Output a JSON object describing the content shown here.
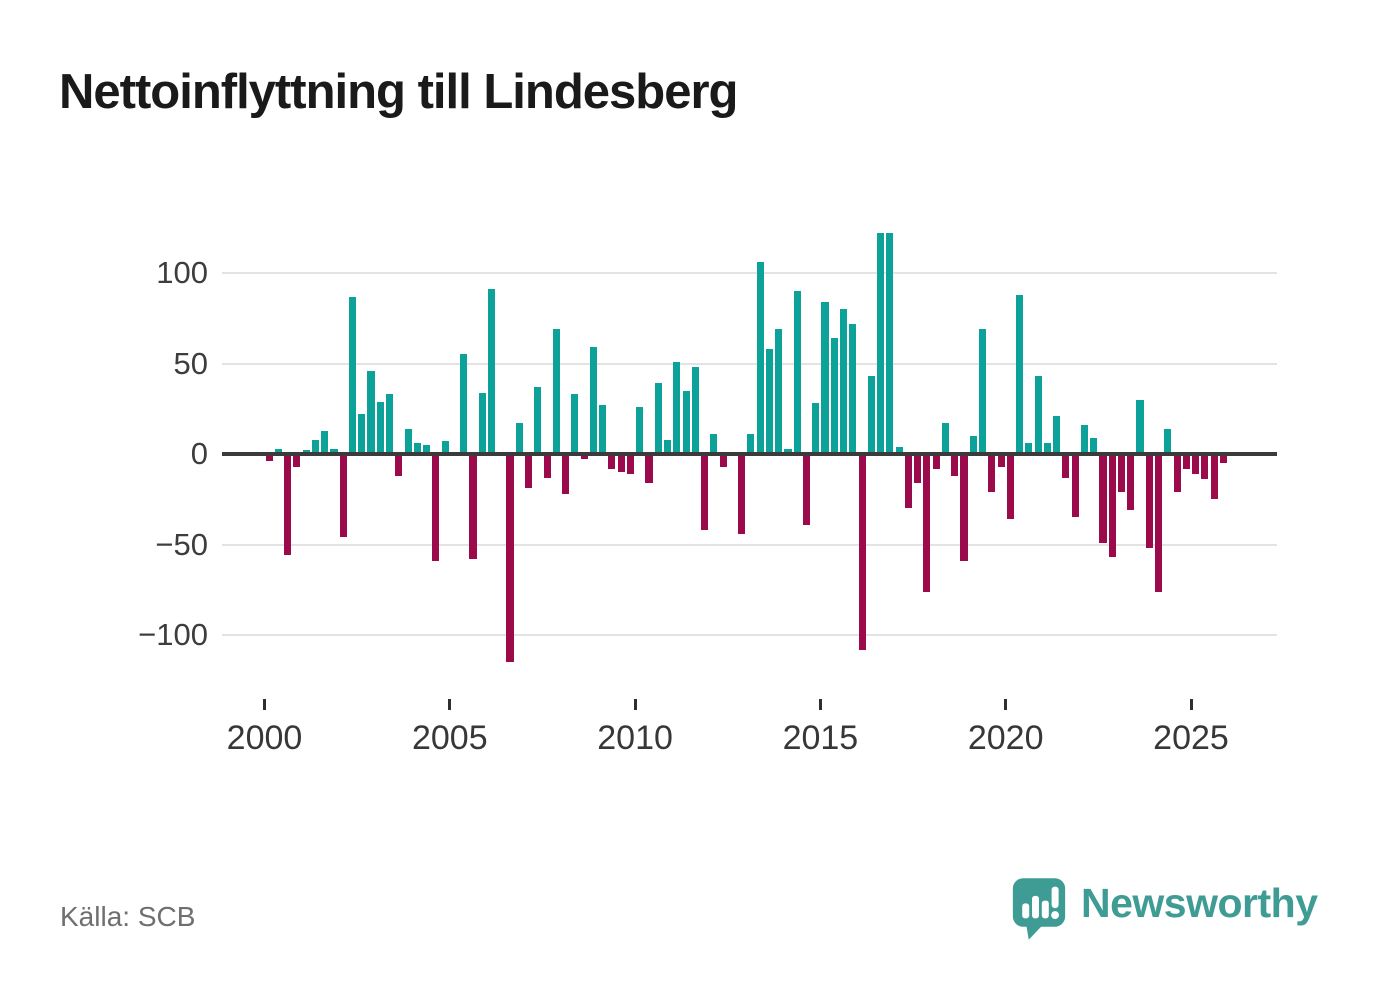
{
  "title": "Nettoinflyttning till Lindesberg",
  "source": "Källa: SCB",
  "branding": {
    "name": "Newsworthy"
  },
  "colors": {
    "positive": "#0da299",
    "negative": "#9b0a4b",
    "axis": "#3b3b3b",
    "grid": "#e3e3e3",
    "brand": "#3f9c95"
  },
  "chart_data": {
    "type": "bar",
    "title": "Nettoinflyttning till Lindesberg",
    "ylabel": "",
    "xlabel": "",
    "frequency": "quarterly",
    "start_period": "2000-Q1",
    "end_period": "2025-Q4",
    "xtick_labels": [
      "2000",
      "2005",
      "2010",
      "2015",
      "2020",
      "2025"
    ],
    "ytick_values": [
      100,
      50,
      0,
      -50,
      -100
    ],
    "ylim": [
      -125,
      130
    ],
    "grid": true,
    "legend": false,
    "positive_color": "#0da299",
    "negative_color": "#9b0a4b",
    "values": [
      -4,
      3,
      -56,
      -7,
      2,
      8,
      13,
      3,
      -46,
      87,
      22,
      46,
      29,
      33,
      -12,
      14,
      6,
      5,
      -59,
      7,
      0,
      55,
      -58,
      34,
      91,
      0,
      -115,
      17,
      -19,
      37,
      -13,
      69,
      -22,
      33,
      -3,
      59,
      27,
      -8,
      -10,
      -11,
      26,
      -16,
      39,
      8,
      51,
      35,
      48,
      -42,
      11,
      -7,
      0,
      -44,
      11,
      106,
      58,
      69,
      3,
      90,
      -39,
      28,
      84,
      64,
      80,
      72,
      -108,
      43,
      122,
      122,
      4,
      -30,
      -16,
      -76,
      -8,
      17,
      -12,
      -59,
      10,
      69,
      -21,
      -7,
      -36,
      88,
      6,
      43,
      6,
      21,
      -13,
      -35,
      16,
      9,
      -49,
      -57,
      -21,
      -31,
      30,
      -52,
      -76,
      14,
      -21,
      -8,
      -11,
      -14,
      -25,
      -5
    ]
  }
}
